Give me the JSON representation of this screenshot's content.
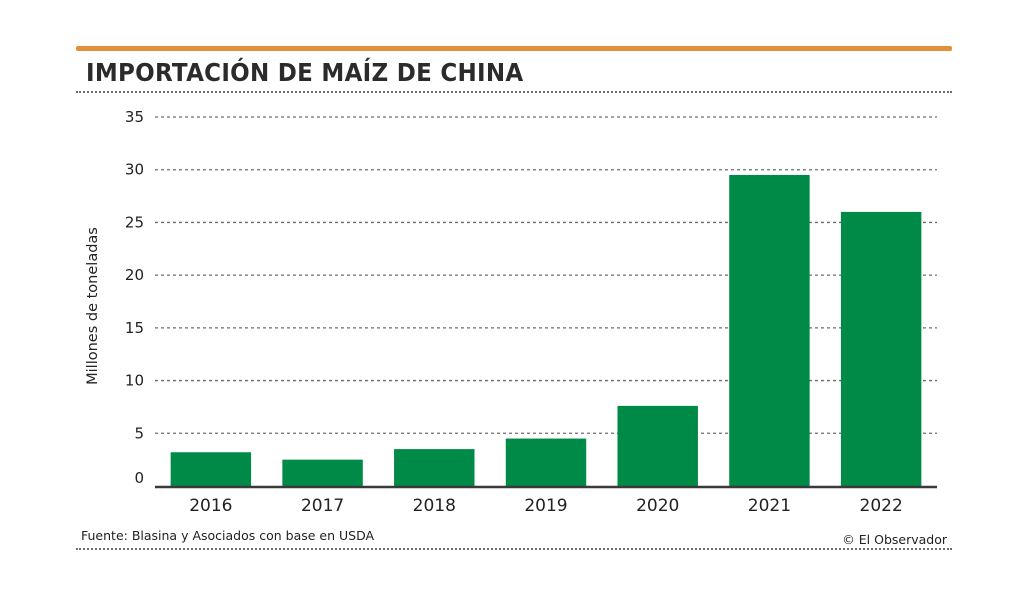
{
  "chart_data": {
    "type": "bar",
    "title": "IMPORTACIÓN DE MAÍZ DE CHINA",
    "ylabel": "Millones de toneladas",
    "xlabel": "",
    "categories": [
      "2016",
      "2017",
      "2018",
      "2019",
      "2020",
      "2021",
      "2022"
    ],
    "values": [
      3.2,
      2.5,
      3.5,
      4.5,
      7.6,
      29.5,
      26.0
    ],
    "ylim": [
      0,
      35
    ],
    "yticks": [
      0,
      5,
      10,
      15,
      20,
      25,
      30,
      35
    ],
    "grid": true,
    "bar_color": "#008a47",
    "accent_color": "#e0913a"
  },
  "footer": {
    "source": "Fuente: Blasina y Asociados con base en USDA",
    "credit": "© El Observador"
  }
}
